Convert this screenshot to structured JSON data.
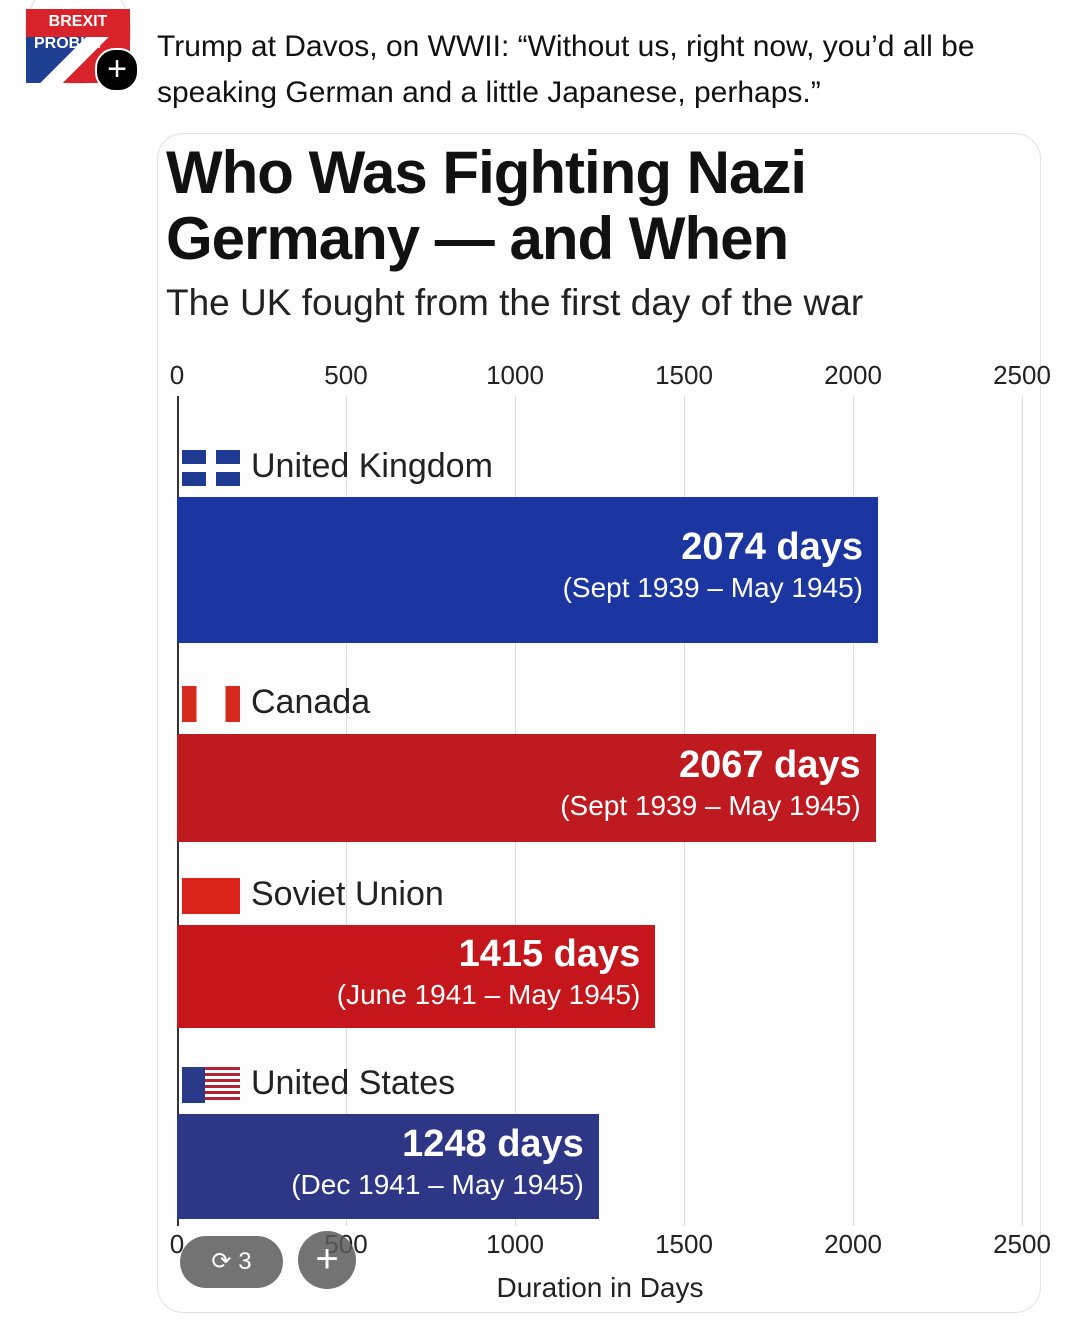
{
  "post": {
    "avatar_lines": [
      "BREXIT",
      "PROBLE"
    ],
    "text": "Trump at Davos, on WWII: “Without us, right now, you’d all be speaking German and a little Japanese, perhaps.”",
    "repost_count": "3"
  },
  "chart_data": {
    "type": "bar",
    "orientation": "horizontal",
    "title": "Who Was Fighting Nazi Germany — and When",
    "subtitle": "The UK fought from the first day of the war",
    "x_label": "Duration in Days",
    "categories": [
      "United Kingdom",
      "Canada",
      "Soviet Union",
      "United States"
    ],
    "values": [
      2074,
      2067,
      1415,
      1248
    ],
    "value_labels": [
      "2074 days",
      "2067 days",
      "1415 days",
      "1248 days"
    ],
    "annotations": [
      "(Sept 1939 – May 1945)",
      "(Sept 1939 – May 1945)",
      "(June 1941 – May 1945)",
      "(Dec 1941 – May 1945)"
    ],
    "colors": [
      "#1b36a0",
      "#bf1a1f",
      "#c4161b",
      "#2e3785"
    ],
    "xlim": [
      0,
      2500
    ],
    "xticks": [
      0,
      500,
      1000,
      1500,
      2000,
      2500
    ],
    "grid": true
  }
}
